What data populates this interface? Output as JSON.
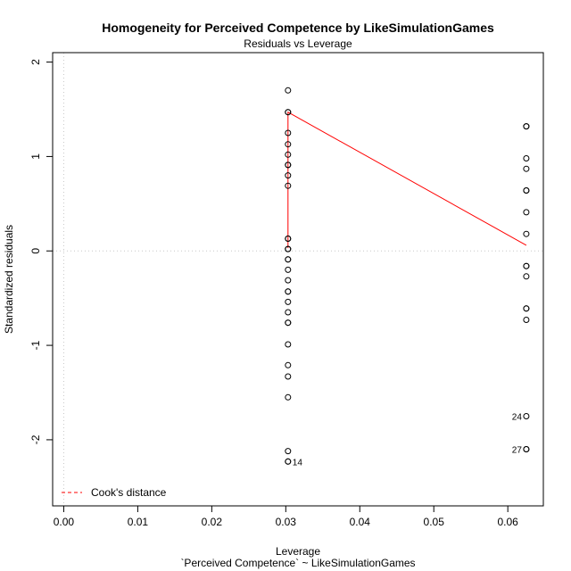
{
  "chart_data": {
    "type": "scatter",
    "title": "Homogeneity for Perceived Competence by LikeSimulationGames",
    "subtitle": "Residuals vs Leverage",
    "xlabel": "Leverage",
    "ylabel": "Standardized residuals",
    "sublabel": "`Perceived Competence` ~ LikeSimulationGames",
    "xlim": [
      -0.0015,
      0.0648
    ],
    "ylim": [
      -2.7,
      2.1
    ],
    "xticks": [
      0.0,
      0.01,
      0.02,
      0.03,
      0.04,
      0.05,
      0.06
    ],
    "xtick_labels": [
      "0.00",
      "0.01",
      "0.02",
      "0.03",
      "0.04",
      "0.05",
      "0.06"
    ],
    "yticks": [
      -2,
      -1,
      0,
      1,
      2
    ],
    "ytick_labels": [
      "-2",
      "-1",
      "0",
      "1",
      "2"
    ],
    "grid": false,
    "reference_lines": {
      "h": 0,
      "v": 0,
      "style": "dotted",
      "color": "#c8c8c8"
    },
    "series": [
      {
        "kind": "points",
        "marker": "open-circle",
        "x": [
          0.0303,
          0.0303,
          0.0303,
          0.0303,
          0.0303,
          0.0303,
          0.0303,
          0.0303,
          0.0303,
          0.0303,
          0.0303,
          0.0303,
          0.0303,
          0.0303,
          0.0303,
          0.0303,
          0.0303,
          0.0303,
          0.0303,
          0.0303,
          0.0303,
          0.0303,
          0.0303,
          0.0303,
          0.0303,
          0.0303,
          0.0303,
          0.0303,
          0.0303,
          0.0303,
          0.0303,
          0.0625,
          0.0625,
          0.0625,
          0.0625,
          0.0625,
          0.0625,
          0.0625,
          0.0625,
          0.0625,
          0.0625,
          0.0625,
          0.0625,
          0.0625,
          0.0625,
          0.0625,
          0.0625,
          0.0625
        ],
        "y": [
          1.7,
          1.47,
          1.47,
          1.25,
          1.13,
          1.02,
          0.91,
          0.91,
          0.8,
          0.69,
          0.13,
          0.13,
          0.02,
          0.02,
          -0.09,
          -0.09,
          -0.2,
          -0.43,
          -0.43,
          -0.54,
          -0.65,
          -0.76,
          -0.76,
          -0.99,
          -1.21,
          -1.33,
          -1.55,
          -2.12,
          -2.23,
          -2.23,
          -0.31,
          1.32,
          1.32,
          0.98,
          0.87,
          0.64,
          0.64,
          0.41,
          0.18,
          -0.16,
          -0.16,
          -0.27,
          -0.61,
          -0.61,
          -0.73,
          -1.75,
          -2.1,
          -2.1
        ]
      },
      {
        "kind": "smoother",
        "color": "#ff0000",
        "x": [
          0.0303,
          0.0303,
          0.0303,
          0.0303,
          0.0625
        ],
        "y": [
          0.03,
          0.1,
          1.47,
          1.47,
          0.06
        ]
      }
    ],
    "point_labels": [
      {
        "text": "14",
        "x": 0.0303,
        "y": -2.23,
        "side": "right"
      },
      {
        "text": "24",
        "x": 0.0625,
        "y": -1.75,
        "side": "left"
      },
      {
        "text": "27",
        "x": 0.0625,
        "y": -2.1,
        "side": "left"
      }
    ],
    "legend": {
      "position": "bottom-left",
      "entries": [
        {
          "label": "Cook's distance",
          "color": "#ff0000",
          "style": "dashed"
        }
      ]
    }
  }
}
